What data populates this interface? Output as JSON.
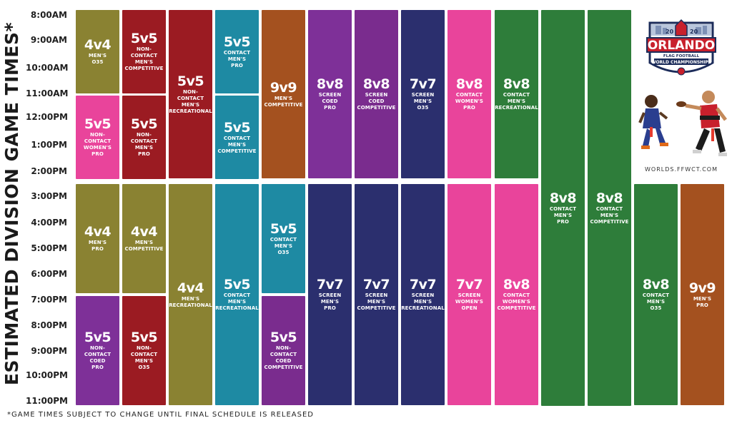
{
  "title": "ESTIMATED DIVISION GAME TIMES*",
  "footnote": "*GAME TIMES SUBJECT TO CHANGE UNTIL FINAL SCHEDULE IS RELEASED",
  "website": "WORLDS.FFWCT.COM",
  "logo": {
    "year_left": "20",
    "year_right": "20",
    "city": "ORLANDO",
    "line1": "FLAG FOOTBALL",
    "line2": "WORLD CHAMPIONSHIPS"
  },
  "times": [
    "8:00AM",
    "9:00AM",
    "10:00AM",
    "11:00AM",
    "12:00PM",
    "1:00PM",
    "2:00PM",
    "3:00PM",
    "4:00PM",
    "5:00PM",
    "6:00PM",
    "7:00PM",
    "8:00PM",
    "9:00PM",
    "10:00PM",
    "11:00PM"
  ],
  "colors": {
    "olive": "#8a8232",
    "pink": "#e9449b",
    "red": "#9b1b22",
    "teal": "#1e8aa3",
    "orange": "#a4511f",
    "violet": "#7e3098",
    "purple": "#7a2c8e",
    "navy": "#2b2f6e",
    "magenta": "#e9449b",
    "green": "#2e7d3a"
  },
  "blocks": [
    {
      "format": "4v4",
      "lines": [
        "MEN'S",
        "O35"
      ],
      "color": "#8a8232"
    },
    {
      "format": "5v5",
      "lines": [
        "NON-CONTACT",
        "MEN'S",
        "COMPETITIVE"
      ],
      "color": "#9b1b22"
    },
    {
      "format": "5v5",
      "lines": [
        "NON-CONTACT",
        "MEN'S",
        "RECREATIONAL"
      ],
      "color": "#9b1b22"
    },
    {
      "format": "5v5",
      "lines": [
        "CONTACT",
        "MEN'S",
        "PRO"
      ],
      "color": "#1e8aa3"
    },
    {
      "format": "9v9",
      "lines": [
        "MEN'S",
        "COMPETITIVE"
      ],
      "color": "#a4511f"
    },
    {
      "format": "8v8",
      "lines": [
        "SCREEN",
        "COED",
        "PRO"
      ],
      "color": "#7e3098"
    },
    {
      "format": "8v8",
      "lines": [
        "SCREEN",
        "COED",
        "COMPETITIVE"
      ],
      "color": "#7a2c8e"
    },
    {
      "format": "7v7",
      "lines": [
        "SCREEN",
        "MEN'S",
        "O35"
      ],
      "color": "#2b2f6e"
    },
    {
      "format": "8v8",
      "lines": [
        "CONTACT",
        "WOMEN'S",
        "PRO"
      ],
      "color": "#e9449b"
    },
    {
      "format": "8v8",
      "lines": [
        "CONTACT",
        "MEN'S",
        "RECREATIONAL"
      ],
      "color": "#2e7d3a"
    },
    {
      "format": "8v8",
      "lines": [
        "CONTACT",
        "MEN'S",
        "PRO"
      ],
      "color": "#2e7d3a"
    },
    {
      "format": "8v8",
      "lines": [
        "CONTACT",
        "MEN'S",
        "COMPETITIVE"
      ],
      "color": "#2e7d3a"
    },
    {
      "format": "5v5",
      "lines": [
        "NON-CONTACT",
        "WOMEN'S",
        "PRO"
      ],
      "color": "#e9449b"
    },
    {
      "format": "5v5",
      "lines": [
        "NON-CONTACT",
        "MEN'S",
        "PRO"
      ],
      "color": "#9b1b22"
    },
    {
      "format": "5v5",
      "lines": [
        "CONTACT",
        "MEN'S",
        "COMPETITIVE"
      ],
      "color": "#1e8aa3"
    },
    {
      "format": "4v4",
      "lines": [
        "MEN'S",
        "PRO"
      ],
      "color": "#8a8232"
    },
    {
      "format": "4v4",
      "lines": [
        "MEN'S",
        "COMPETITIVE"
      ],
      "color": "#8a8232"
    },
    {
      "format": "4v4",
      "lines": [
        "MEN'S",
        "RECREATIONAL"
      ],
      "color": "#8a8232"
    },
    {
      "format": "5v5",
      "lines": [
        "CONTACT",
        "MEN'S",
        "RECREATIONAL"
      ],
      "color": "#1e8aa3"
    },
    {
      "format": "5v5",
      "lines": [
        "CONTACT",
        "MEN'S",
        "O35"
      ],
      "color": "#1e8aa3"
    },
    {
      "format": "7v7",
      "lines": [
        "SCREEN",
        "MEN'S",
        "PRO"
      ],
      "color": "#2b2f6e"
    },
    {
      "format": "7v7",
      "lines": [
        "SCREEN",
        "MEN'S",
        "COMPETITIVE"
      ],
      "color": "#2b2f6e"
    },
    {
      "format": "7v7",
      "lines": [
        "SCREEN",
        "MEN'S",
        "RECREATIONAL"
      ],
      "color": "#2b2f6e"
    },
    {
      "format": "7v7",
      "lines": [
        "SCREEN",
        "WOMEN'S",
        "OPEN"
      ],
      "color": "#e9449b"
    },
    {
      "format": "8v8",
      "lines": [
        "CONTACT",
        "WOMEN'S",
        "COMPETITIVE"
      ],
      "color": "#e9449b"
    },
    {
      "format": "8v8",
      "lines": [
        "CONTACT",
        "MEN'S",
        "O35"
      ],
      "color": "#2e7d3a"
    },
    {
      "format": "9v9",
      "lines": [
        "MEN'S",
        "PRO"
      ],
      "color": "#a4511f"
    },
    {
      "format": "5v5",
      "lines": [
        "NON-CONTACT",
        "COED",
        "PRO"
      ],
      "color": "#7e3098"
    },
    {
      "format": "5v5",
      "lines": [
        "NON-CONTACT",
        "MEN'S",
        "O35"
      ],
      "color": "#9b1b22"
    },
    {
      "format": "5v5",
      "lines": [
        "NON-CONTACT",
        "COED",
        "COMPETITIVE"
      ],
      "color": "#7a2c8e"
    }
  ]
}
